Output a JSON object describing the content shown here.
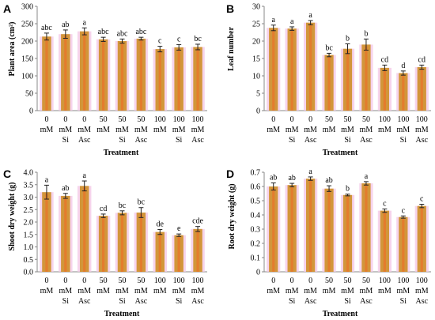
{
  "figure": {
    "background": "#ffffff",
    "bar_color": "#D2963A",
    "bar_inner_color": "#E8732A",
    "bar_glow_color": "#F3C6E6",
    "error_color": "#222222",
    "axis_color": "#888888"
  },
  "chart_data": [
    {
      "type": "bar",
      "panel": "A",
      "xlabel": "Treatment",
      "ylabel": "Plant area (cm²)",
      "categories": [
        [
          "0",
          "mM"
        ],
        [
          "0",
          "mM",
          "Si"
        ],
        [
          "0",
          "mM",
          "Asc"
        ],
        [
          "50",
          "mM"
        ],
        [
          "50",
          "mM",
          "Si"
        ],
        [
          "50",
          "mM",
          "Asc"
        ],
        [
          "100",
          "mM"
        ],
        [
          "100",
          "mM",
          "Si"
        ],
        [
          "100",
          "mM",
          "Asc"
        ]
      ],
      "values": [
        213,
        220,
        228,
        205,
        200,
        207,
        177,
        182,
        183
      ],
      "errors": [
        10,
        12,
        10,
        6,
        6,
        4,
        8,
        8,
        8
      ],
      "letters": [
        "abc",
        "ab",
        "a",
        "abc",
        "abc",
        "abc",
        "c",
        "c",
        "bc"
      ],
      "ylim": [
        0,
        300
      ],
      "yticks": [
        "0",
        "50",
        "100",
        "150",
        "200",
        "250",
        "300"
      ],
      "grid": false
    },
    {
      "type": "bar",
      "panel": "B",
      "xlabel": "Treatment",
      "ylabel": "Leaf number",
      "categories": [
        [
          "0",
          "mM"
        ],
        [
          "0",
          "mM",
          "Si"
        ],
        [
          "0",
          "mM",
          "Asc"
        ],
        [
          "50",
          "mM"
        ],
        [
          "50",
          "mM",
          "Si"
        ],
        [
          "50",
          "mM",
          "Asc"
        ],
        [
          "100",
          "mM"
        ],
        [
          "100",
          "mM",
          "Si"
        ],
        [
          "100",
          "mM",
          "Asc"
        ]
      ],
      "values": [
        23.8,
        23.6,
        25.3,
        16.0,
        17.8,
        19.0,
        12.3,
        10.8,
        12.5
      ],
      "errors": [
        0.8,
        0.5,
        0.6,
        0.5,
        1.4,
        1.6,
        0.8,
        0.6,
        0.6
      ],
      "letters": [
        "a",
        "a",
        "a",
        "bc",
        "b",
        "b",
        "cd",
        "d",
        "cd"
      ],
      "ylim": [
        0,
        30
      ],
      "yticks": [
        "0",
        "5",
        "10",
        "15",
        "20",
        "25",
        "30"
      ],
      "grid": false
    },
    {
      "type": "bar",
      "panel": "C",
      "xlabel": "Treatment",
      "ylabel": "Shoot dry weight (g)",
      "categories": [
        [
          "0",
          "mM"
        ],
        [
          "0",
          "mM",
          "Si"
        ],
        [
          "0",
          "mM",
          "Asc"
        ],
        [
          "50",
          "mM"
        ],
        [
          "50",
          "mM",
          "Si"
        ],
        [
          "50",
          "mM",
          "Asc"
        ],
        [
          "100",
          "mM"
        ],
        [
          "100",
          "mM",
          "Si"
        ],
        [
          "100",
          "mM",
          "Asc"
        ]
      ],
      "values": [
        3.2,
        3.05,
        3.45,
        2.25,
        2.37,
        2.38,
        1.6,
        1.47,
        1.72
      ],
      "errors": [
        0.28,
        0.1,
        0.2,
        0.07,
        0.08,
        0.2,
        0.1,
        0.05,
        0.1
      ],
      "letters": [
        "a",
        "ab",
        "a",
        "cd",
        "bc",
        "bc",
        "de",
        "e",
        "cde"
      ],
      "ylim": [
        0,
        4.0
      ],
      "yticks": [
        "0.0",
        "0.5",
        "1.0",
        "1.5",
        "2.0",
        "2.5",
        "3.0",
        "3.5",
        "4.0"
      ],
      "grid": false
    },
    {
      "type": "bar",
      "panel": "D",
      "xlabel": "Treatment",
      "ylabel": "Root dry weight (g)",
      "categories": [
        [
          "0",
          "mM"
        ],
        [
          "0",
          "mM",
          "Si"
        ],
        [
          "0",
          "mM",
          "Asc"
        ],
        [
          "50",
          "mM"
        ],
        [
          "50",
          "mM",
          "Si"
        ],
        [
          "50",
          "mM",
          "Asc"
        ],
        [
          "100",
          "mM"
        ],
        [
          "100",
          "mM",
          "Si"
        ],
        [
          "100",
          "mM",
          "Asc"
        ]
      ],
      "values": [
        0.6,
        0.61,
        0.655,
        0.585,
        0.54,
        0.622,
        0.43,
        0.385,
        0.463
      ],
      "errors": [
        0.025,
        0.012,
        0.012,
        0.02,
        0.006,
        0.012,
        0.012,
        0.008,
        0.012
      ],
      "letters": [
        "ab",
        "ab",
        "a",
        "ab",
        "b",
        "a",
        "c",
        "c",
        "c"
      ],
      "ylim": [
        0,
        0.7
      ],
      "yticks": [
        "0",
        "0.1",
        "0.2",
        "0.3",
        "0.4",
        "0.5",
        "0.6",
        "0.7"
      ],
      "grid": false
    }
  ]
}
